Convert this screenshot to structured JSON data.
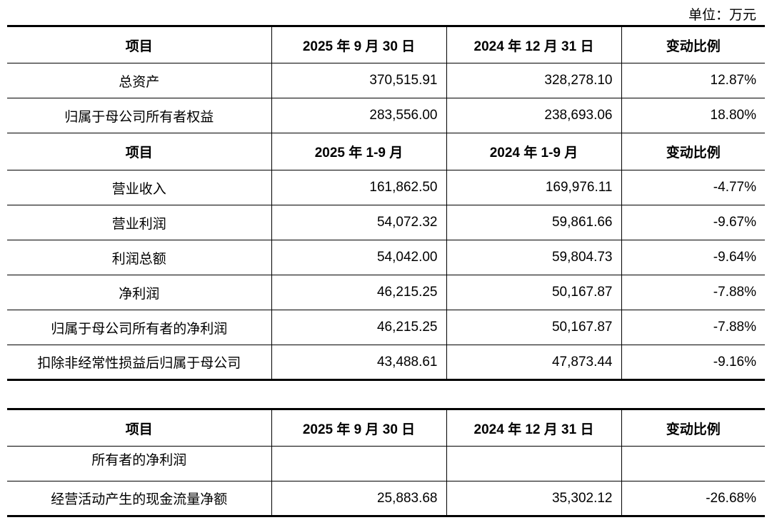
{
  "unit": "单位：万元",
  "table1": {
    "header": [
      "项目",
      "2025 年 9 月 30 日",
      "2024 年 12 月 31 日",
      "变动比例"
    ],
    "rows": [
      [
        "总资产",
        "370,515.91",
        "328,278.10",
        "12.87%"
      ],
      [
        "归属于母公司所有者权益",
        "283,556.00",
        "238,693.06",
        "18.80%"
      ]
    ],
    "section_header": [
      "项目",
      "2025 年 1-9 月",
      "2024 年 1-9 月",
      "变动比例"
    ],
    "section_rows": [
      [
        "营业收入",
        "161,862.50",
        "169,976.11",
        "-4.77%"
      ],
      [
        "营业利润",
        "54,072.32",
        "59,861.66",
        "-9.67%"
      ],
      [
        "利润总额",
        "54,042.00",
        "59,804.73",
        "-9.64%"
      ],
      [
        "净利润",
        "46,215.25",
        "50,167.87",
        "-7.88%"
      ],
      [
        "归属于母公司所有者的净利润",
        "46,215.25",
        "50,167.87",
        "-7.88%"
      ],
      [
        "扣除非经常性损益后归属于母公司",
        "43,488.61",
        "47,873.44",
        "-9.16%"
      ]
    ]
  },
  "table2": {
    "header": [
      "项目",
      "2025 年 9 月 30 日",
      "2024 年 12 月 31 日",
      "变动比例"
    ],
    "rows": [
      [
        "所有者的净利润"
      ],
      [
        "经营活动产生的现金流量净额",
        "25,883.68",
        "35,302.12",
        "-26.68%"
      ]
    ]
  }
}
